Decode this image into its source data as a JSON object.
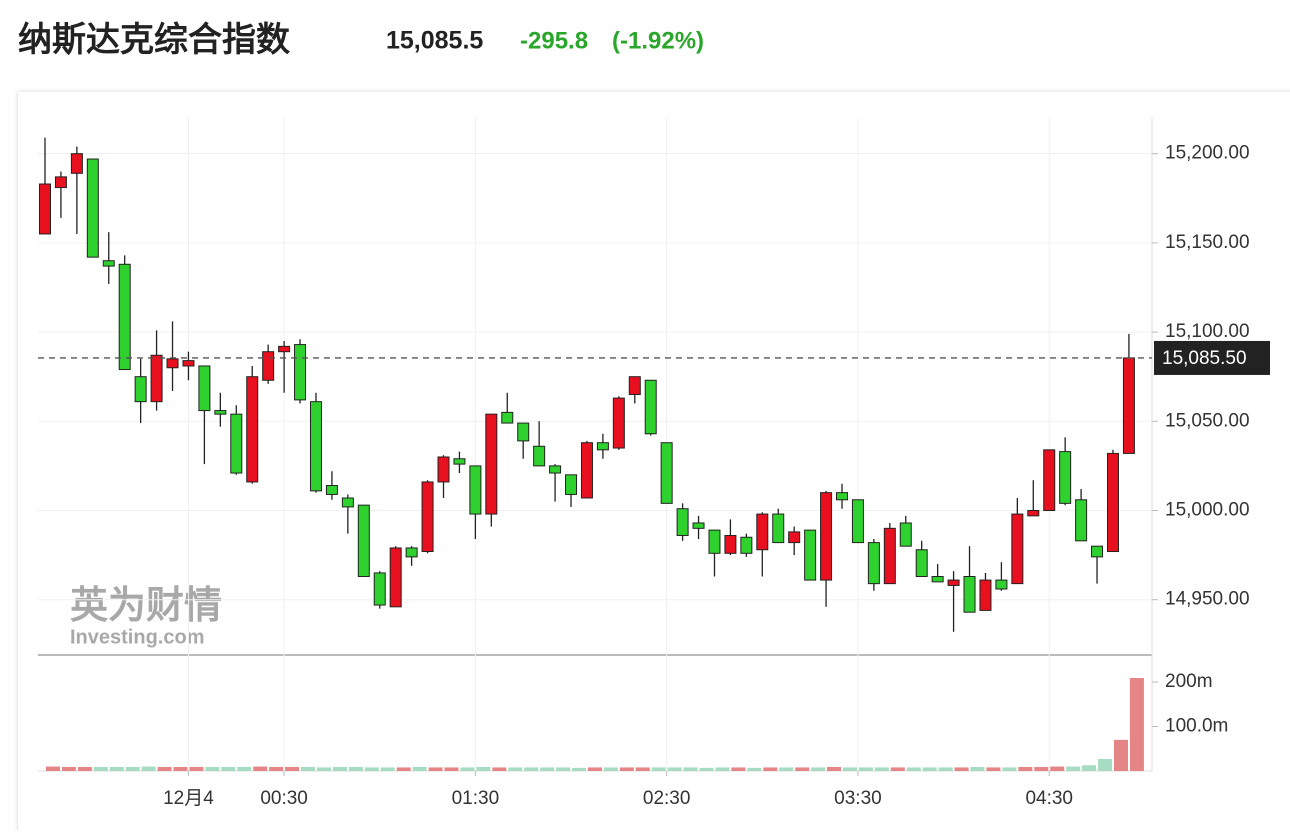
{
  "chart_data": {
    "type": "candlestick",
    "title": "纳斯达克综合指数",
    "price": "15,085.5",
    "change": "-295.8",
    "change_pct": "(-1.92%)",
    "watermark": {
      "title": "英为财情",
      "brand": "Investing.com"
    },
    "up_color": "#e8101f",
    "down_color": "#2ed12e",
    "volume_up_color": "#e58585",
    "volume_down_color": "#a6dcc2",
    "categories": [
      null,
      null,
      null,
      null,
      null,
      null,
      null,
      null,
      null,
      "12月4",
      null,
      null,
      null,
      null,
      null,
      "00:30",
      null,
      null,
      null,
      null,
      null,
      null,
      null,
      null,
      null,
      null,
      null,
      "01:30",
      null,
      null,
      null,
      null,
      null,
      null,
      null,
      null,
      null,
      null,
      null,
      "02:30",
      null,
      null,
      null,
      null,
      null,
      null,
      null,
      null,
      null,
      null,
      null,
      "03:30",
      null,
      null,
      null,
      null,
      null,
      null,
      null,
      null,
      null,
      null,
      null,
      "04:30",
      null,
      null,
      null,
      null,
      null
    ],
    "open": [
      15155,
      15181,
      15189,
      15197,
      15140,
      15138,
      15075,
      15061,
      15080,
      15081,
      15081,
      15056,
      15054,
      15016,
      15073,
      15089,
      15093,
      15061,
      15014,
      15007,
      15003,
      14965,
      14946,
      14979,
      14977,
      15016,
      15029,
      15025,
      14998,
      15055,
      15049,
      15036,
      15025,
      15020,
      15007,
      15038,
      15035,
      15065,
      15073,
      15038,
      15001,
      14993,
      14989,
      14976,
      14985,
      14978,
      14998,
      14982,
      14989,
      14961,
      15010,
      15006,
      14982,
      14959,
      14993,
      14978,
      14963,
      14958,
      14963,
      14944,
      14961,
      14959,
      14997,
      15000,
      15033,
      15006,
      14980,
      14977,
      15032
    ],
    "high": [
      15209,
      15190,
      15204,
      15197,
      15156,
      15143,
      15085,
      15101,
      15106,
      15089,
      15081,
      15066,
      15059,
      15081,
      15093,
      15095,
      15096,
      15066,
      15022,
      15009,
      15003,
      14966,
      14980,
      14980,
      15017,
      15031,
      15033,
      15025,
      15054,
      15066,
      15049,
      15050,
      15026,
      15020,
      15039,
      15043,
      15064,
      15075,
      15073,
      15038,
      15004,
      14997,
      14989,
      14995,
      14987,
      14999,
      15001,
      14991,
      14989,
      15011,
      15015,
      15006,
      14984,
      14993,
      14997,
      14983,
      14970,
      14966,
      14980,
      14965,
      14971,
      15007,
      15017,
      15034,
      15041,
      15012,
      14980,
      15034,
      15099
    ],
    "low": [
      15155,
      15164,
      15155,
      15142,
      15127,
      15079,
      15049,
      15056,
      15067,
      15073,
      15026,
      15047,
      15020,
      15015,
      15071,
      15066,
      15060,
      15010,
      15006,
      14987,
      14963,
      14945,
      14946,
      14969,
      14976,
      15007,
      15021,
      14984,
      14991,
      15049,
      15029,
      15025,
      15005,
      15002,
      15007,
      15029,
      15034,
      15060,
      15042,
      15004,
      14983,
      14984,
      14963,
      14975,
      14974,
      14963,
      14982,
      14975,
      14961,
      14946,
      15001,
      14982,
      14955,
      14959,
      14980,
      14963,
      14960,
      14932,
      14943,
      14944,
      14955,
      14959,
      14997,
      15000,
      15003,
      14983,
      14959,
      14977,
      15032
    ],
    "close": [
      15183,
      15187,
      15200,
      15142,
      15137,
      15079,
      15061,
      15087,
      15085,
      15084,
      15056,
      15054,
      15021,
      15075,
      15089,
      15092,
      15062,
      15011,
      15009,
      15002,
      14963,
      14947,
      14979,
      14974,
      15016,
      15030,
      15026,
      14998,
      15054,
      15049,
      15039,
      15025,
      15021,
      15009,
      15038,
      15034,
      15063,
      15075,
      15043,
      15004,
      14986,
      14990,
      14976,
      14986,
      14976,
      14998,
      14982,
      14988,
      14961,
      15010,
      15006,
      14982,
      14959,
      14990,
      14980,
      14963,
      14960,
      14961,
      14943,
      14961,
      14956,
      14998,
      15000,
      15034,
      15004,
      14983,
      14974,
      15032,
      15085.5
    ],
    "volume": [
      10,
      9,
      9,
      9,
      9,
      9,
      10,
      9,
      9,
      9,
      9,
      9,
      9,
      10,
      9,
      9,
      9,
      8,
      9,
      9,
      8,
      8,
      8,
      9,
      8,
      8,
      8,
      9,
      8,
      8,
      8,
      8,
      8,
      7,
      8,
      8,
      8,
      8,
      8,
      8,
      8,
      7,
      8,
      8,
      7,
      8,
      8,
      8,
      8,
      9,
      8,
      8,
      8,
      8,
      8,
      8,
      8,
      8,
      9,
      8,
      8,
      9,
      9,
      10,
      10,
      13,
      27,
      70,
      209
    ],
    "ylim": [
      14919,
      15220
    ],
    "yticks": [
      {
        "value": 14950,
        "label": "14,950.00"
      },
      {
        "value": 15000,
        "label": "15,000.00"
      },
      {
        "value": 15050,
        "label": "15,050.00"
      },
      {
        "value": 15100,
        "label": "15,100.00"
      },
      {
        "value": 15150,
        "label": "15,150.00"
      },
      {
        "value": 15200,
        "label": "15,200.00"
      }
    ],
    "volume_ylim": [
      0,
      254
    ],
    "volume_ticks": [
      {
        "value": 100,
        "label": "100.0m"
      },
      {
        "value": 200,
        "label": "200m"
      }
    ],
    "last_price": {
      "value": 15085.5,
      "label": "15,085.50"
    },
    "grid": true
  }
}
